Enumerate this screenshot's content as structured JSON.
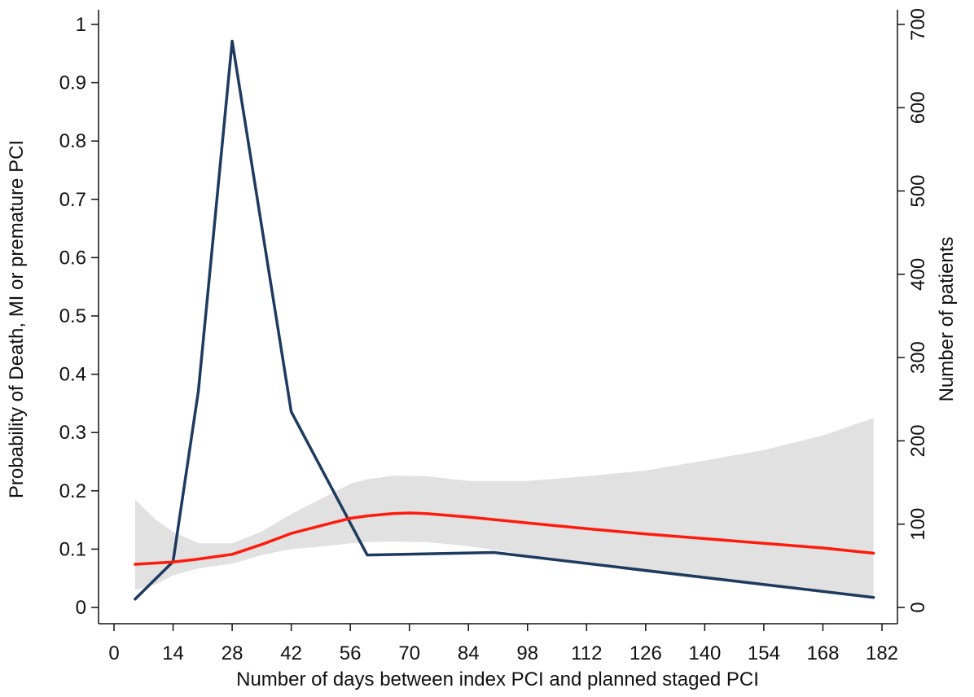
{
  "chart_data": {
    "type": "line",
    "title": "",
    "xlabel": "Number of days between index PCI and planned staged PCI",
    "ylabel": "Probability of Death, MI or premature PCI",
    "y2label": "Number of patients",
    "xlim": [
      0,
      182
    ],
    "ylim": [
      0,
      1
    ],
    "y2lim": [
      0,
      700
    ],
    "xticks": [
      0,
      14,
      28,
      42,
      56,
      70,
      84,
      98,
      112,
      126,
      140,
      154,
      168,
      182
    ],
    "yticks": [
      0,
      0.1,
      0.2,
      0.3,
      0.4,
      0.5,
      0.6,
      0.7,
      0.8,
      0.9,
      1
    ],
    "y2ticks": [
      0,
      100,
      200,
      300,
      400,
      500,
      600,
      700
    ],
    "grid": false,
    "legend": "none",
    "confidence_band": {
      "x": [
        5,
        10,
        14,
        20,
        28,
        35,
        42,
        50,
        56,
        60,
        66,
        74,
        84,
        98,
        112,
        126,
        140,
        154,
        168,
        180
      ],
      "lower": [
        0.03,
        0.04,
        0.055,
        0.067,
        0.075,
        0.09,
        0.1,
        0.105,
        0.11,
        0.112,
        0.113,
        0.112,
        0.105,
        0.09,
        0.075,
        0.06,
        0.048,
        0.036,
        0.027,
        0.02
      ],
      "upper": [
        0.185,
        0.15,
        0.13,
        0.11,
        0.11,
        0.13,
        0.16,
        0.19,
        0.212,
        0.22,
        0.226,
        0.225,
        0.217,
        0.217,
        0.225,
        0.235,
        0.252,
        0.27,
        0.295,
        0.325
      ],
      "color": "#e1e1e1"
    },
    "series": [
      {
        "axis": "left",
        "color": "#ff1a0d",
        "x": [
          5,
          14,
          20,
          28,
          35,
          42,
          50,
          56,
          60,
          66,
          70,
          74,
          84,
          98,
          112,
          126,
          140,
          154,
          168,
          180
        ],
        "values": [
          0.074,
          0.078,
          0.083,
          0.091,
          0.108,
          0.127,
          0.142,
          0.153,
          0.157,
          0.161,
          0.162,
          0.161,
          0.155,
          0.145,
          0.135,
          0.126,
          0.118,
          0.11,
          0.102,
          0.093
        ]
      },
      {
        "axis": "right",
        "color": "#1f3a5f",
        "x": [
          5,
          14,
          20,
          28,
          42,
          60,
          90,
          180
        ],
        "values": [
          10,
          55,
          260,
          680,
          235,
          63,
          66,
          12
        ]
      }
    ]
  }
}
